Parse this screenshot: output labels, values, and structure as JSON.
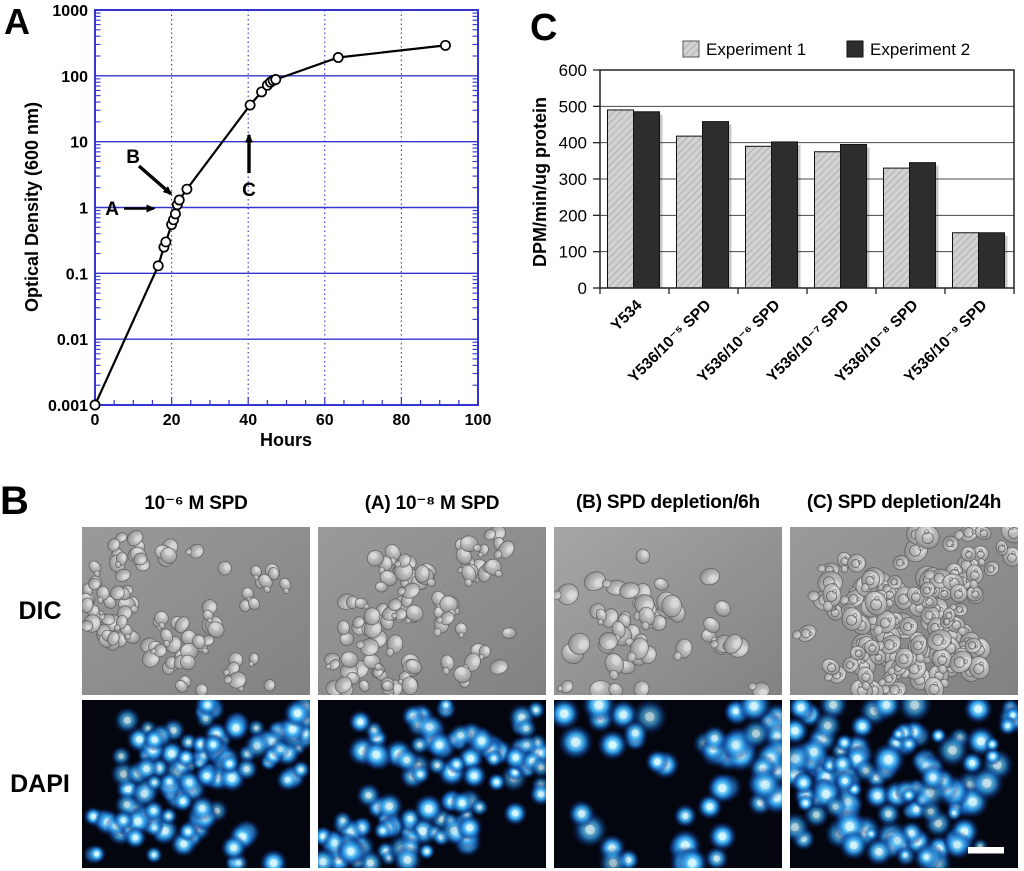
{
  "panels": {
    "a": {
      "letter": "A",
      "x_label": "Hours",
      "y_label": "Optical Density (600 nm)"
    },
    "c": {
      "letter": "C",
      "y_label": "DPM/min/ug protein"
    },
    "b": {
      "letter": "B",
      "row_labels": [
        "DIC",
        "DAPI"
      ],
      "column_headers": [
        "10⁻⁶ M SPD",
        "(A) 10⁻⁸ M SPD",
        "(B) SPD depletion/6h",
        "(C) SPD depletion/24h"
      ]
    }
  },
  "chart_data": [
    {
      "type": "line",
      "title": "Growth curve",
      "xlabel": "Hours",
      "ylabel": "Optical Density (600 nm)",
      "x": [
        0,
        16.5,
        18,
        18.5,
        20,
        20.5,
        21,
        21.5,
        22,
        24,
        40.5,
        43.5,
        45,
        45.8,
        46.5,
        47.2,
        63.5,
        91.5
      ],
      "y": [
        0.001,
        0.13,
        0.25,
        0.3,
        0.55,
        0.65,
        0.8,
        1.1,
        1.3,
        1.9,
        36,
        57,
        72,
        80,
        85,
        88,
        190,
        290
      ],
      "xlim": [
        0,
        100
      ],
      "ylim": [
        0.001,
        1000
      ],
      "y_scale": "log",
      "x_ticks": [
        0,
        20,
        40,
        60,
        80,
        100
      ],
      "y_tick_labels": [
        "1000",
        "100",
        "10",
        "1",
        "0.1",
        "0.01",
        "0.001"
      ],
      "y_tick_values": [
        1000,
        100,
        10,
        1,
        0.1,
        0.01,
        0.001
      ],
      "grid": true,
      "marker": "open-circle",
      "line_color": "#000000",
      "axis_color": "#3434cf",
      "annotations": [
        {
          "label": "A",
          "style": "horizontal-arrow",
          "points_to": [
            22,
            1.0
          ]
        },
        {
          "label": "B",
          "style": "diagonal-arrow",
          "points_to": [
            22,
            1.3
          ]
        },
        {
          "label": "C",
          "style": "vertical-arrow",
          "points_to": [
            40,
            30
          ]
        }
      ]
    },
    {
      "type": "bar",
      "categories": [
        "Y534",
        "Y536/10⁻⁵ SPD",
        "Y536/10⁻⁶ SPD",
        "Y536/10⁻⁷ SPD",
        "Y536/10⁻⁸ SPD",
        "Y536/10⁻⁹ SPD"
      ],
      "series": [
        {
          "name": "Experiment 1",
          "values": [
            490,
            418,
            390,
            375,
            330,
            152
          ],
          "color": "#d2d2d2",
          "hatch": true
        },
        {
          "name": "Experiment 2",
          "values": [
            485,
            458,
            402,
            395,
            345,
            152
          ],
          "color": "#2d2d2d",
          "hatch": false
        }
      ],
      "xlabel": "",
      "ylabel": "DPM/min/ug protein",
      "ylim": [
        0,
        600
      ],
      "y_ticks": [
        0,
        100,
        200,
        300,
        400,
        500,
        600
      ],
      "grid": true,
      "legend_position": "top"
    }
  ],
  "micrographs": [
    {
      "row": "DIC",
      "condition": "10⁻⁶ M SPD",
      "style": "dic",
      "cells": 95,
      "rmin": 5.5,
      "rmax": 9,
      "spread": 30,
      "textured": false,
      "seed": 101
    },
    {
      "row": "DIC",
      "condition": "(A) 10⁻⁸ M SPD",
      "style": "dic",
      "cells": 100,
      "rmin": 5.5,
      "rmax": 9.5,
      "spread": 30,
      "textured": false,
      "seed": 202
    },
    {
      "row": "DIC",
      "condition": "(B) SPD depletion/6h",
      "style": "dic",
      "cells": 48,
      "rmin": 6.5,
      "rmax": 11,
      "spread": 48,
      "textured": false,
      "seed": 303
    },
    {
      "row": "DIC",
      "condition": "(C) SPD depletion/24h",
      "style": "dic",
      "cells": 128,
      "rmin": 7,
      "rmax": 12.5,
      "spread": 36,
      "textured": true,
      "seed": 404
    },
    {
      "row": "DAPI",
      "condition": "10⁻⁶ M SPD",
      "style": "dapi",
      "cells": 128,
      "rmin": 4,
      "rmax": 7,
      "spread": 30,
      "seed": 505
    },
    {
      "row": "DAPI",
      "condition": "(A) 10⁻⁸ M SPD",
      "style": "dapi",
      "cells": 128,
      "rmin": 4,
      "rmax": 7.5,
      "spread": 30,
      "seed": 606
    },
    {
      "row": "DAPI",
      "condition": "(B) SPD depletion/6h",
      "style": "dapi",
      "cells": 56,
      "rmin": 5.5,
      "rmax": 9,
      "spread": 48,
      "seed": 707
    },
    {
      "row": "DAPI",
      "condition": "(C) SPD depletion/24h",
      "style": "dapi",
      "cells": 140,
      "rmin": 3.5,
      "rmax": 8.5,
      "spread": 34,
      "seed": 808,
      "scale_bar": true
    }
  ],
  "colors": {
    "axis_blue": "#3434cf",
    "curve_black": "#000000",
    "bar_experiment1": "#d2d2d2",
    "bar_experiment2": "#2d2d2d",
    "dic_background": "#8f8f8f",
    "dapi_background": "#04060f",
    "dapi_glow": "#35c2ff",
    "scale_bar": "#ffffff"
  }
}
